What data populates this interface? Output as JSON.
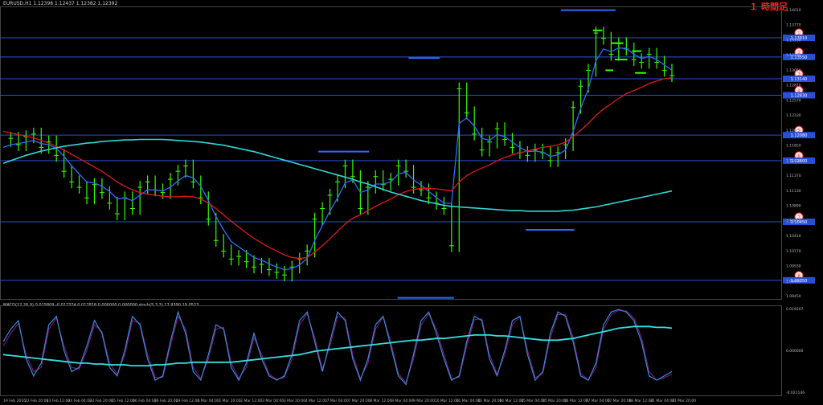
{
  "header": {
    "symbol_line": "EURUSD,H1  1.12398 1.12437 1.12382 1.12392",
    "indicator_line": "MACD(12,26,9) 0.015809 -0.017374 0.017818 0.000000 0.000000  stoch(5,3,3) 17.9390 19.0523",
    "badge": "１ 時間足"
  },
  "chart_data": {
    "type": "line",
    "title": "EURUSD,H1",
    "y_ticks": [
      "1.14010",
      "1.13770",
      "1.13530",
      "1.13290",
      "1.13050",
      "1.12810",
      "1.12570",
      "1.12330",
      "1.12090",
      "1.11850",
      "1.11610",
      "1.11370",
      "1.11130",
      "1.10890",
      "1.10650",
      "1.10410",
      "1.10170",
      "1.09930",
      "1.09690",
      "1.09450"
    ],
    "x_ticks": [
      "19 Feb 2016",
      "22 Feb 20:00",
      "23 Feb 12:00",
      "24 Feb 04:00",
      "24 Feb 20:00",
      "25 Feb 12:00",
      "26 Feb 04:00",
      "26 Feb 20:00",
      "29 Feb 12:00",
      "1 Mar 04:00",
      "1 Mar 20:00",
      "2 Mar 12:00",
      "3 Mar 04:00",
      "3 Mar 20:00",
      "4 Mar 12:00",
      "7 Mar 04:00",
      "7 Mar 20:00",
      "8 Mar 12:00",
      "9 Mar 04:00",
      "9 Mar 20:00",
      "10 Mar 12:00",
      "11 Mar 04:00",
      "11 Mar 20:00",
      "14 Mar 12:00",
      "15 Mar 04:00",
      "15 Mar 20:00",
      "16 Mar 12:00",
      "17 Mar 04:00",
      "17 Mar 20:00",
      "18 Mar 12:00",
      "21 Mar 04:00",
      "21 Mar 20:00"
    ],
    "levels": [
      {
        "label": "①",
        "price": 1.1391,
        "name": "level-1"
      },
      {
        "label": "②",
        "price": 1.1355,
        "name": "level-2"
      },
      {
        "label": "③",
        "price": 1.1314,
        "name": "level-3"
      },
      {
        "label": "④",
        "price": 1.1283,
        "name": "level-4"
      },
      {
        "label": "⑤",
        "price": 1.1208,
        "name": "level-5"
      },
      {
        "label": "⑥",
        "price": 1.116,
        "name": "level-6"
      },
      {
        "label": "⑦",
        "price": 1.1045,
        "name": "level-7"
      },
      {
        "label": "⑧",
        "price": 1.0935,
        "name": "level-8"
      }
    ],
    "level_price_tags": [
      "1.13910",
      "1.13550",
      "1.13140",
      "1.12830",
      "1.12080",
      "1.11600",
      "1.10450",
      "1.09350"
    ],
    "price_axis": {
      "min": 1.09,
      "max": 1.145
    },
    "series": [
      {
        "kind": "price",
        "color": "#33ff00",
        "values": [
          1.1198,
          1.1202,
          1.119,
          1.1205,
          1.121,
          1.1185,
          1.1195,
          1.117,
          1.114,
          1.112,
          1.111,
          1.109,
          1.1115,
          1.11,
          1.108,
          1.106,
          1.109,
          1.107,
          1.111,
          1.112,
          1.1105,
          1.11,
          1.1125,
          1.114,
          1.115,
          1.112,
          1.109,
          1.105,
          1.101,
          1.099,
          1.0975,
          1.098,
          1.097,
          1.096,
          1.0965,
          1.0955,
          1.095,
          1.0945,
          1.096,
          1.0975,
          1.099,
          1.105,
          1.107,
          1.1095,
          1.112,
          1.115,
          1.113,
          1.107,
          1.111,
          1.113,
          1.1115,
          1.1125,
          1.115,
          1.114,
          1.111,
          1.1105,
          1.109,
          1.108,
          1.107,
          1.1,
          1.1295,
          1.125,
          1.121,
          1.118,
          1.1195,
          1.122,
          1.12,
          1.1185,
          1.1175,
          1.117,
          1.118,
          1.1175,
          1.116,
          1.1175,
          1.119,
          1.126,
          1.13,
          1.133,
          1.14,
          1.139,
          1.136,
          1.138,
          1.137,
          1.135,
          1.1345,
          1.136,
          1.1345,
          1.133,
          1.132
        ]
      },
      {
        "kind": "ema-fast",
        "color": "#2f6dff",
        "values": [
          1.1185,
          1.119,
          1.1192,
          1.1195,
          1.1198,
          1.1192,
          1.119,
          1.1183,
          1.1168,
          1.115,
          1.1135,
          1.112,
          1.1118,
          1.1112,
          1.1102,
          1.1088,
          1.109,
          1.1085,
          1.1095,
          1.1105,
          1.1105,
          1.1103,
          1.111,
          1.1122,
          1.1132,
          1.1128,
          1.1112,
          1.1085,
          1.1055,
          1.103,
          1.1008,
          1.0998,
          1.0988,
          1.0978,
          1.0973,
          1.0966,
          1.096,
          1.0955,
          1.0957,
          1.0964,
          1.0976,
          1.101,
          1.1038,
          1.1065,
          1.109,
          1.1118,
          1.1124,
          1.11,
          1.1105,
          1.1116,
          1.1116,
          1.112,
          1.1135,
          1.1138,
          1.1124,
          1.1114,
          1.1102,
          1.1091,
          1.108,
          1.108,
          1.123,
          1.124,
          1.1225,
          1.1202,
          1.1198,
          1.1209,
          1.1205,
          1.1195,
          1.1185,
          1.1177,
          1.1178,
          1.1176,
          1.1168,
          1.1171,
          1.118,
          1.1215,
          1.1258,
          1.1295,
          1.1348,
          1.137,
          1.1365,
          1.1372,
          1.1371,
          1.136,
          1.1352,
          1.1356,
          1.135,
          1.134,
          1.133
        ]
      },
      {
        "kind": "ma-mid",
        "color": "#e01a1a",
        "values": [
          1.1215,
          1.1212,
          1.1209,
          1.1206,
          1.1203,
          1.1198,
          1.1193,
          1.1187,
          1.118,
          1.1172,
          1.1164,
          1.1156,
          1.1148,
          1.114,
          1.113,
          1.112,
          1.1112,
          1.1105,
          1.11,
          1.1097,
          1.1095,
          1.1093,
          1.1092,
          1.1092,
          1.1093,
          1.1092,
          1.1088,
          1.108,
          1.107,
          1.1058,
          1.1046,
          1.1035,
          1.1024,
          1.1014,
          1.1005,
          1.0997,
          1.099,
          1.0983,
          1.0978,
          1.0976,
          1.0978,
          1.0988,
          1.1,
          1.1013,
          1.1027,
          1.1041,
          1.1052,
          1.1058,
          1.1066,
          1.1074,
          1.1081,
          1.1088,
          1.1096,
          1.1102,
          1.1106,
          1.1108,
          1.1108,
          1.1107,
          1.1105,
          1.1103,
          1.112,
          1.1132,
          1.114,
          1.1146,
          1.1152,
          1.116,
          1.1166,
          1.1171,
          1.1175,
          1.1178,
          1.1182,
          1.1185,
          1.1187,
          1.119,
          1.1195,
          1.1205,
          1.1217,
          1.123,
          1.1245,
          1.1257,
          1.1267,
          1.1277,
          1.1286,
          1.1292,
          1.1298,
          1.1305,
          1.131,
          1.1314,
          1.1316
        ]
      },
      {
        "kind": "ma-slow",
        "color": "#33d6d6",
        "values": [
          1.1155,
          1.116,
          1.1165,
          1.117,
          1.1174,
          1.1178,
          1.1181,
          1.1184,
          1.1187,
          1.1189,
          1.1191,
          1.1193,
          1.1194,
          1.1196,
          1.1197,
          1.1198,
          1.1199,
          1.1199,
          1.12,
          1.12,
          1.12,
          1.12,
          1.1199,
          1.1198,
          1.1197,
          1.1196,
          1.1195,
          1.1193,
          1.1191,
          1.1189,
          1.1186,
          1.1183,
          1.118,
          1.1177,
          1.1173,
          1.1169,
          1.1165,
          1.1161,
          1.1157,
          1.1153,
          1.1149,
          1.1145,
          1.1141,
          1.1137,
          1.1133,
          1.1129,
          1.1125,
          1.112,
          1.1116,
          1.1111,
          1.1106,
          1.1101,
          1.1097,
          1.1093,
          1.1089,
          1.1085,
          1.1082,
          1.1079,
          1.1076,
          1.1074,
          1.1073,
          1.1072,
          1.1071,
          1.107,
          1.1069,
          1.1068,
          1.1067,
          1.1066,
          1.1066,
          1.1065,
          1.1065,
          1.1065,
          1.1065,
          1.1065,
          1.1066,
          1.1067,
          1.1069,
          1.1071,
          1.1073,
          1.1076,
          1.1079,
          1.1082,
          1.1085,
          1.1088,
          1.1091,
          1.1094,
          1.1097,
          1.11,
          1.1103
        ]
      }
    ],
    "markers": [
      {
        "x": 0.753,
        "price": 1.1443,
        "w": 0.07
      },
      {
        "x": 0.543,
        "price": 1.1353,
        "w": 0.04
      },
      {
        "x": 0.44,
        "price": 1.1177,
        "w": 0.065
      },
      {
        "x": 0.704,
        "price": 1.103,
        "w": 0.062
      },
      {
        "x": 0.545,
        "price": 1.0902,
        "w": 0.072
      },
      {
        "x": 0.765,
        "price": 1.1405,
        "w": 0.012
      },
      {
        "x": 0.79,
        "price": 1.1381,
        "w": 0.016
      },
      {
        "x": 0.815,
        "price": 1.1366,
        "w": 0.012
      },
      {
        "x": 0.795,
        "price": 1.135,
        "w": 0.016
      },
      {
        "x": 0.82,
        "price": 1.1325,
        "w": 0.014
      },
      {
        "x": 0.78,
        "price": 1.133,
        "w": 0.01
      }
    ],
    "indicator": {
      "y_ticks": [
        "0.019207",
        "0.000000",
        "-0.021146"
      ],
      "stoch_a": [
        60,
        75,
        85,
        40,
        20,
        35,
        80,
        90,
        50,
        25,
        30,
        55,
        85,
        70,
        30,
        20,
        50,
        90,
        80,
        40,
        15,
        20,
        60,
        95,
        70,
        25,
        15,
        45,
        80,
        75,
        30,
        15,
        35,
        70,
        40,
        20,
        15,
        20,
        45,
        85,
        95,
        60,
        25,
        60,
        95,
        85,
        40,
        15,
        40,
        80,
        90,
        55,
        20,
        10,
        45,
        85,
        95,
        70,
        40,
        15,
        20,
        60,
        90,
        85,
        40,
        20,
        50,
        85,
        90,
        45,
        15,
        25,
        70,
        95,
        90,
        60,
        20,
        15,
        35,
        80,
        95,
        98,
        95,
        85,
        60,
        20,
        15,
        20,
        25
      ],
      "stoch_b": [
        55,
        70,
        82,
        45,
        25,
        30,
        75,
        88,
        55,
        30,
        28,
        50,
        80,
        72,
        35,
        22,
        45,
        85,
        82,
        45,
        18,
        18,
        55,
        90,
        75,
        30,
        17,
        40,
        75,
        77,
        35,
        17,
        30,
        65,
        45,
        22,
        16,
        18,
        40,
        80,
        93,
        65,
        28,
        55,
        90,
        88,
        45,
        17,
        35,
        75,
        90,
        60,
        23,
        12,
        40,
        80,
        93,
        75,
        45,
        17,
        18,
        55,
        86,
        87,
        45,
        22,
        45,
        80,
        90,
        50,
        18,
        22,
        65,
        92,
        92,
        65,
        23,
        15,
        30,
        75,
        92,
        97,
        96,
        88,
        65,
        25,
        15,
        18,
        22
      ],
      "macd": [
        45,
        44,
        43,
        42,
        41,
        40,
        39,
        38,
        37,
        36,
        35,
        35,
        34,
        34,
        33,
        33,
        33,
        32,
        32,
        32,
        33,
        33,
        34,
        35,
        35,
        36,
        36,
        36,
        36,
        36,
        36,
        37,
        38,
        39,
        40,
        41,
        42,
        43,
        44,
        45,
        47,
        49,
        50,
        51,
        52,
        53,
        54,
        55,
        56,
        57,
        58,
        59,
        60,
        61,
        62,
        62,
        63,
        64,
        64,
        65,
        66,
        67,
        68,
        68,
        68,
        67,
        67,
        66,
        65,
        64,
        63,
        62,
        62,
        62,
        63,
        64,
        66,
        68,
        70,
        72,
        74,
        76,
        77,
        78,
        78,
        78,
        77,
        77,
        76
      ]
    }
  }
}
